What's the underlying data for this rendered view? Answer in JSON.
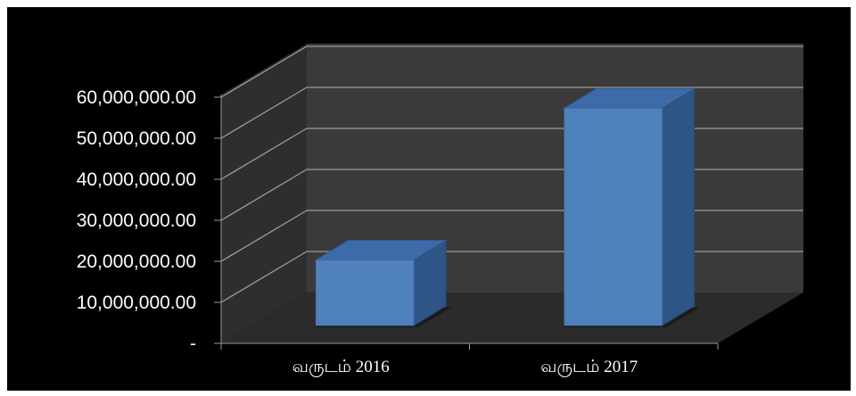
{
  "chart_data": {
    "type": "bar",
    "style": "3d-column",
    "categories": [
      "வருடம் 2016",
      "வருடம் 2017"
    ],
    "values": [
      16000000,
      53000000
    ],
    "ylim": [
      0,
      60000000
    ],
    "yticks": [
      0,
      10000000,
      20000000,
      30000000,
      40000000,
      50000000,
      60000000
    ],
    "ytick_labels": [
      "-",
      "10,000,000.00",
      "20,000,000.00",
      "30,000,000.00",
      "40,000,000.00",
      "50,000,000.00",
      "60,000,000.00"
    ],
    "title": "",
    "xlabel": "",
    "ylabel": "",
    "grid": true,
    "legend": "none",
    "colors": {
      "background": "#000000",
      "bar_front": "#4f81bd",
      "bar_top": "#3d6aa8",
      "bar_side": "#2f5486",
      "back_wall": "#3a3a3a",
      "side_wall": "#2e2e2e",
      "floor": "#2b2b2b",
      "gridline": "#9a9a9a",
      "text": "#ffffff"
    }
  }
}
